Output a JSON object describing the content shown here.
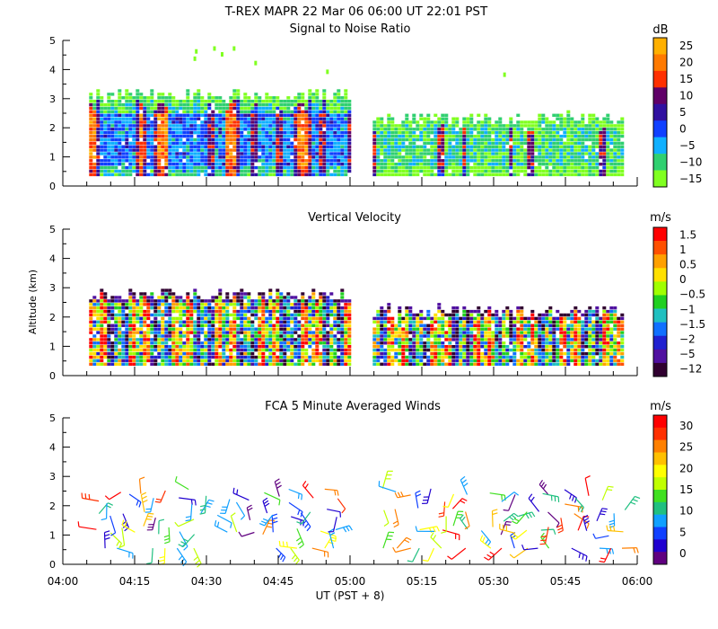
{
  "header": {
    "title": "T-REX   MAPR 22 Mar 06   06:00 UT   22:01   PST"
  },
  "xaxis": {
    "label": "UT  (PST + 8)",
    "ticks": [
      "04:00",
      "04:15",
      "04:30",
      "04:45",
      "05:00",
      "05:15",
      "05:30",
      "05:45",
      "06:00"
    ]
  },
  "yaxis": {
    "label": "Altitude (km)",
    "ticks": [
      "0",
      "1",
      "2",
      "3",
      "4",
      "5"
    ]
  },
  "panels": [
    {
      "title": "Signal to Noise Ratio",
      "unit": "dB",
      "colorbar_labels": [
        "25",
        "20",
        "15",
        "10",
        "5",
        "0",
        "−5",
        "−10",
        "−15"
      ],
      "colors": [
        "#ffb000",
        "#ff7a00",
        "#ff3000",
        "#600068",
        "#3010a0",
        "#1040ff",
        "#10b0ff",
        "#30d070",
        "#80ff20"
      ]
    },
    {
      "title": "Vertical Velocity",
      "unit": "m/s",
      "colorbar_labels": [
        "1.5",
        "1",
        "0.5",
        "0",
        "−0.5",
        "−1",
        "−1.5",
        "−2",
        "−5",
        "−12"
      ],
      "colors": [
        "#ff0000",
        "#ff5000",
        "#ffa000",
        "#ffe000",
        "#a0ff00",
        "#20d020",
        "#20c0c0",
        "#1070ff",
        "#2020d0",
        "#5010a0",
        "#300030"
      ]
    },
    {
      "title": "FCA 5 Minute Averaged Winds",
      "unit": "m/s",
      "colorbar_labels": [
        "30",
        "25",
        "20",
        "15",
        "10",
        "5",
        "0"
      ],
      "colors": [
        "#ff0000",
        "#ff3000",
        "#ff8000",
        "#ffc000",
        "#ffff00",
        "#c0ff00",
        "#40e020",
        "#20c080",
        "#10a0ff",
        "#1040ff",
        "#2000d0",
        "#600080"
      ]
    }
  ],
  "chart_data": [
    {
      "type": "heatmap",
      "title": "Signal to Noise Ratio",
      "unit": "dB",
      "x_range": [
        "04:00",
        "06:00"
      ],
      "ylim": [
        0,
        5
      ],
      "colorbar_range": [
        -15,
        25
      ],
      "data_gap": [
        "05:00",
        "05:05"
      ],
      "max_altitude_km_before_gap": 3.2,
      "max_altitude_km_after_gap": 2.4
    },
    {
      "type": "heatmap",
      "title": "Vertical Velocity",
      "unit": "m/s",
      "x_range": [
        "04:00",
        "06:00"
      ],
      "ylim": [
        0,
        5
      ],
      "colorbar_values": [
        1.5,
        1,
        0.5,
        0,
        -0.5,
        -1,
        -1.5,
        -2,
        -5,
        -12
      ],
      "data_gap": [
        "05:00",
        "05:05"
      ],
      "max_altitude_km_before_gap": 2.8,
      "max_altitude_km_after_gap": 2.4
    },
    {
      "type": "scatter",
      "title": "FCA 5 Minute Averaged Winds",
      "unit": "m/s",
      "x_range": [
        "04:00",
        "06:00"
      ],
      "ylim": [
        0,
        5
      ],
      "colorbar_range": [
        0,
        30
      ],
      "altitude_range_km": [
        0.5,
        2.9
      ]
    }
  ]
}
